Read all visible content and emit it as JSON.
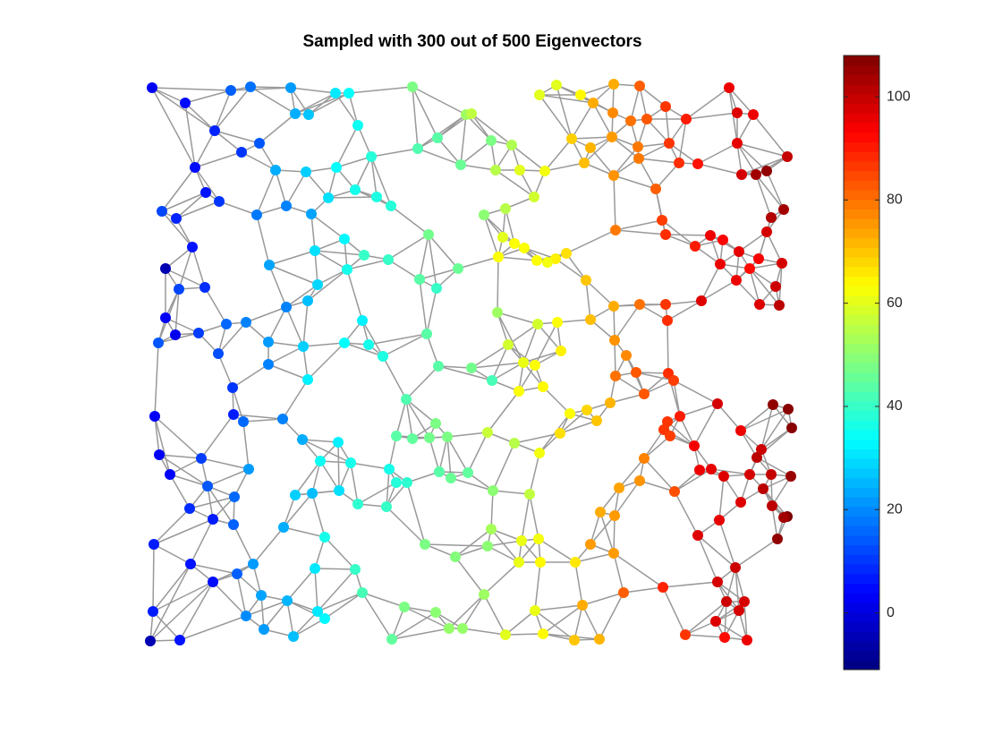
{
  "chart_data": {
    "type": "graph",
    "title": "Sampled with 300 out of 500 Eigenvectors",
    "colormap": "jet",
    "xlim": [
      0,
      725
    ],
    "ylim": [
      0,
      630
    ],
    "clim": [
      -11,
      108
    ],
    "cticks": [
      0,
      20,
      40,
      60,
      80,
      100
    ],
    "edge_color": "#999999",
    "x": [
      5,
      42,
      75,
      93,
      115,
      105,
      125,
      53,
      65,
      80,
      16,
      32,
      50,
      20,
      35,
      64,
      20,
      31,
      12,
      57,
      88,
      110,
      79,
      95,
      135,
      135,
      96,
      107,
      151,
      8,
      13,
      25,
      60,
      67,
      97,
      113,
      47,
      73,
      96,
      7,
      48,
      73,
      100,
      6,
      3,
      36,
      118,
      127,
      110,
      130,
      163,
      190,
      198,
      156,
      187,
      165,
      152,
      160,
      165,
      180,
      210,
      225,
      235,
      211,
      177,
      143,
      122,
      155,
      183,
      202,
      232,
      250,
      256,
      272,
      220,
      187,
      136,
      155,
      179,
      190,
      223,
      242,
      269,
      240,
      247,
      220,
      263,
      174,
      179,
      173,
      213,
      193,
      227,
      270,
      278,
      214,
      184,
      235,
      267,
      198,
      232,
      240,
      290,
      296,
      356,
      362,
      324,
      302,
      350,
      384,
      407,
      389,
      416,
      444,
      376,
      400,
      432,
      397,
      410,
      392,
      421,
      435,
      456,
      468,
      447,
      347,
      304,
      323,
      314,
      391,
      436,
      458,
      403,
      312,
      325,
      362,
      385,
      420,
      433,
      462,
      415,
      442,
      289,
      315,
      278,
      296,
      322,
      335,
      339,
      358,
      386,
      427,
      380,
      410,
      438,
      461,
      472,
      326,
      310,
      344,
      376,
      418,
      437,
      415,
      439,
      478,
      384,
      380,
      273,
      287,
      322,
      337,
      352,
      400,
      433,
      442,
      477,
      505,
      486,
      438,
      457,
      484,
      521,
      550,
      498,
      520,
      540,
      558,
      579,
      602,
      474,
      495,
      519,
      548,
      583,
      594,
      615,
      650,
      659,
      677,
      659,
      664,
      680,
      692,
      715,
      711,
      697,
      692,
      488,
      521,
      549,
      568,
      523,
      575,
      579,
      612,
      629,
      643,
      661,
      683,
      673,
      640,
      709,
      658,
      702,
      684,
      706,
      619,
      579,
      581,
      550,
      521,
      490,
      495,
      522,
      535,
      523,
      546,
      555,
      582,
      588,
      595,
      577,
      584,
      611,
      637,
      699,
      716,
      720,
      663,
      686,
      681,
      673,
      644,
      630,
      617,
      697,
      719,
      688,
      698,
      715,
      711,
      704,
      663,
      639,
      615,
      657,
      637,
      647,
      667,
      661,
      635,
      601,
      645,
      670,
      576,
      532,
      521,
      495,
      506,
      522,
      527,
      550,
      589,
      555,
      581,
      502,
      491,
      517
    ],
    "y": [
      622,
      605,
      574,
      619,
      623,
      550,
      560,
      533,
      505,
      495,
      484,
      476,
      444,
      420,
      397,
      399,
      365,
      346,
      337,
      348,
      358,
      360,
      325,
      287,
      338,
      313,
      257,
      249,
      252,
      255,
      212,
      190,
      208,
      177,
      165,
      196,
      152,
      140,
      134,
      112,
      90,
      70,
      79,
      37,
      4,
      5,
      90,
      55,
      32,
      17,
      9,
      37,
      29,
      49,
      85,
      167,
      131,
      622,
      593,
      592,
      616,
      616,
      580,
      533,
      528,
      530,
      480,
      490,
      481,
      499,
      508,
      545,
      500,
      490,
      453,
      440,
      424,
      377,
      384,
      402,
      419,
      435,
      430,
      362,
      335,
      337,
      322,
      333,
      296,
      229,
      226,
      205,
      203,
      196,
      181,
      172,
      169,
      157,
      154,
      120,
      84,
      58,
      181,
      623,
      592,
      593,
      566,
      554,
      536,
      563,
      558,
      530,
      530,
      529,
      480,
      487,
      500,
      455,
      448,
      433,
      443,
      429,
      431,
      437,
      427,
      420,
      408,
      398,
      458,
      371,
      358,
      360,
      335,
      347,
      311,
      309,
      295,
      315,
      312,
      328,
      283,
      288,
      274,
      231,
      233,
      230,
      247,
      232,
      186,
      192,
      172,
      168,
      237,
      225,
      214,
      236,
      258,
      193,
      112,
      98,
      56,
      116,
      118,
      92,
      92,
      92,
      129,
      110,
      6,
      42,
      36,
      18,
      18,
      11,
      38,
      12,
      5,
      6,
      44,
      614,
      625,
      614,
      626,
      624,
      605,
      594,
      585,
      587,
      601,
      587,
      565,
      555,
      567,
      556,
      560,
      538,
      537,
      622,
      594,
      592,
      560,
      525,
      525,
      529,
      545,
      486,
      477,
      461,
      538,
      524,
      543,
      509,
      463,
      474,
      458,
      445,
      457,
      452,
      439,
      431,
      420,
      425,
      426,
      407,
      400,
      380,
      379,
      384,
      380,
      362,
      380,
      378,
      407,
      363,
      340,
      323,
      300,
      304,
      280,
      303,
      295,
      255,
      240,
      233,
      222,
      269,
      268,
      263,
      242,
      239,
      218,
      209,
      190,
      188,
      196,
      195,
      190,
      188,
      174,
      155,
      143,
      142,
      118,
      159,
      139,
      122,
      86,
      70,
      48,
      48,
      38,
      26,
      11,
      8,
      5,
      64,
      58,
      102,
      112,
      148,
      144,
      175,
      183,
      171,
      208,
      249,
      250,
      262,
      270
    ],
    "values": [
      3,
      5,
      8,
      15,
      17,
      10,
      14,
      5,
      6,
      10,
      12,
      8,
      6,
      -5,
      12,
      9,
      3,
      2,
      14,
      11,
      16,
      19,
      13,
      10,
      22,
      19,
      7,
      16,
      19,
      3,
      3,
      4,
      11,
      14,
      16,
      22,
      9,
      7,
      15,
      7,
      6,
      5,
      15,
      7,
      -5,
      6,
      22,
      23,
      20,
      22,
      26,
      31,
      33,
      25,
      31,
      28,
      24,
      22,
      24,
      27,
      31,
      34,
      35,
      34,
      28,
      24,
      18,
      19,
      23,
      30,
      36,
      38,
      37,
      38,
      33,
      30,
      23,
      19,
      26,
      29,
      36,
      40,
      40,
      32,
      36,
      34,
      37,
      28,
      32,
      24,
      32,
      35,
      36,
      36,
      38,
      30,
      26,
      39,
      40,
      36,
      40,
      42,
      39,
      48,
      52,
      56,
      44,
      43,
      46,
      48,
      54,
      55,
      60,
      62,
      50,
      55,
      58,
      60,
      63,
      63,
      63,
      63,
      65,
      67,
      62,
      46,
      44,
      40,
      47,
      52,
      58,
      63,
      58,
      44,
      44,
      47,
      42,
      61,
      63,
      65,
      63,
      64,
      43,
      47,
      44,
      45,
      48,
      48,
      46,
      45,
      50,
      56,
      57,
      55,
      62,
      67,
      63,
      44,
      48,
      49,
      52,
      61,
      62,
      61,
      64,
      66,
      53,
      50,
      45,
      48,
      50,
      51,
      51,
      60,
      61,
      64,
      70,
      72,
      73,
      60,
      60,
      64,
      73,
      82,
      73,
      77,
      80,
      83,
      87,
      90,
      69,
      72,
      75,
      79,
      87,
      88,
      91,
      95,
      97,
      95,
      96,
      98,
      104,
      106,
      100,
      104,
      102,
      98,
      71,
      76,
      79,
      82,
      79,
      86,
      88,
      90,
      95,
      93,
      96,
      94,
      92,
      95,
      98,
      95,
      99,
      97,
      101,
      97,
      87,
      88,
      80,
      73,
      70,
      71,
      76,
      77,
      80,
      83,
      83,
      88,
      86,
      90,
      87,
      86,
      94,
      98,
      106,
      107,
      107,
      95,
      99,
      101,
      98,
      97,
      96,
      95,
      100,
      105,
      101,
      101,
      108,
      104,
      106,
      97,
      96,
      97,
      99,
      98,
      99,
      98,
      98,
      97,
      87,
      92,
      95,
      89,
      82,
      75,
      75,
      73,
      75,
      74,
      76,
      84,
      78,
      87,
      70,
      68,
      72
    ]
  }
}
